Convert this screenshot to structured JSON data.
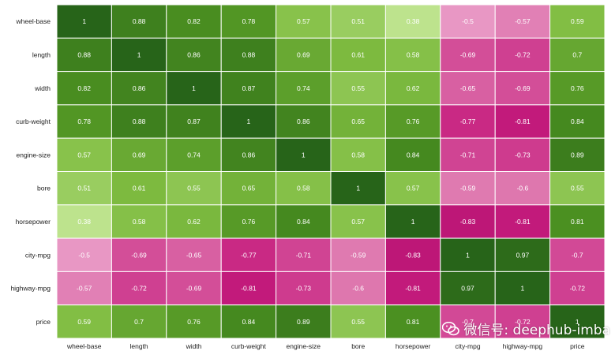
{
  "chart_data": {
    "type": "heatmap",
    "title": "",
    "xlabel": "",
    "ylabel": "",
    "rows": [
      "wheel-base",
      "length",
      "width",
      "curb-weight",
      "engine-size",
      "bore",
      "horsepower",
      "city-mpg",
      "highway-mpg",
      "price"
    ],
    "columns": [
      "wheel-base",
      "length",
      "width",
      "curb-weight",
      "engine-size",
      "bore",
      "horsepower",
      "city-mpg",
      "highway-mpg",
      "price"
    ],
    "values": [
      [
        1,
        0.88,
        0.82,
        0.78,
        0.57,
        0.51,
        0.38,
        -0.5,
        -0.57,
        0.59
      ],
      [
        0.88,
        1,
        0.86,
        0.88,
        0.69,
        0.61,
        0.58,
        -0.69,
        -0.72,
        0.7
      ],
      [
        0.82,
        0.86,
        1,
        0.87,
        0.74,
        0.55,
        0.62,
        -0.65,
        -0.69,
        0.76
      ],
      [
        0.78,
        0.88,
        0.87,
        1,
        0.86,
        0.65,
        0.76,
        -0.77,
        -0.81,
        0.84
      ],
      [
        0.57,
        0.69,
        0.74,
        0.86,
        1,
        0.58,
        0.84,
        -0.71,
        -0.73,
        0.89
      ],
      [
        0.51,
        0.61,
        0.55,
        0.65,
        0.58,
        1,
        0.57,
        -0.59,
        -0.6,
        0.55
      ],
      [
        0.38,
        0.58,
        0.62,
        0.76,
        0.84,
        0.57,
        1,
        -0.83,
        -0.81,
        0.81
      ],
      [
        -0.5,
        -0.69,
        -0.65,
        -0.77,
        -0.71,
        -0.59,
        -0.83,
        1,
        0.97,
        -0.7
      ],
      [
        -0.57,
        -0.72,
        -0.69,
        -0.81,
        -0.73,
        -0.6,
        -0.81,
        0.97,
        1,
        -0.72
      ],
      [
        0.59,
        0.7,
        0.76,
        0.84,
        0.89,
        0.55,
        0.81,
        -0.7,
        -0.72,
        1
      ]
    ],
    "colormap": "PiYG",
    "colors": {
      "negative_strong": "#c51b7d",
      "negative_light": "#f1b6da",
      "positive_light": "#b8e186",
      "positive_strong": "#276419",
      "annotation": "#ffffff"
    },
    "grid": true,
    "annotated": true
  },
  "watermark": {
    "text": "微信号: deephub-imba",
    "icon": "wechat-icon"
  }
}
